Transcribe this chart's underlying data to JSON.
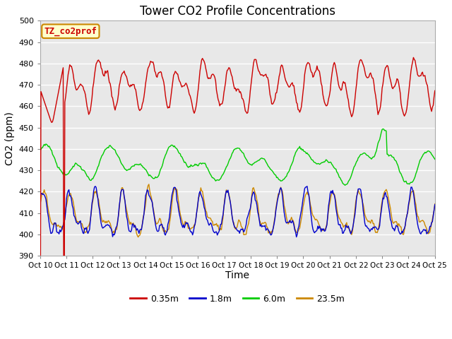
{
  "title": "Tower CO2 Profile Concentrations",
  "xlabel": "Time",
  "ylabel": "CO2 (ppm)",
  "ylim": [
    390,
    500
  ],
  "yticks": [
    390,
    400,
    410,
    420,
    430,
    440,
    450,
    460,
    470,
    480,
    490,
    500
  ],
  "x_labels": [
    "Oct 10",
    "Oct 11",
    "Oct 12",
    "Oct 13",
    "Oct 14",
    "Oct 15",
    "Oct 16",
    "Oct 17",
    "Oct 18",
    "Oct 19",
    "Oct 20",
    "Oct 21",
    "Oct 22",
    "Oct 23",
    "Oct 24",
    "Oct 25"
  ],
  "annotation_text": "TZ_co2prof",
  "annotation_box_color": "#ffffcc",
  "annotation_box_edge_color": "#cc8800",
  "series_colors": [
    "#cc0000",
    "#0000cc",
    "#00cc00",
    "#cc8800"
  ],
  "series_lw": 1.0,
  "plot_bg_color": "#e8e8e8",
  "grid_color": "#ffffff",
  "legend_labels": [
    "0.35m",
    "1.8m",
    "6.0m",
    "23.5m"
  ],
  "legend_colors": [
    "#cc0000",
    "#0000cc",
    "#00cc00",
    "#cc8800"
  ],
  "fig_bg": "#ffffff",
  "title_fontsize": 12,
  "label_fontsize": 10,
  "tick_fontsize": 8
}
